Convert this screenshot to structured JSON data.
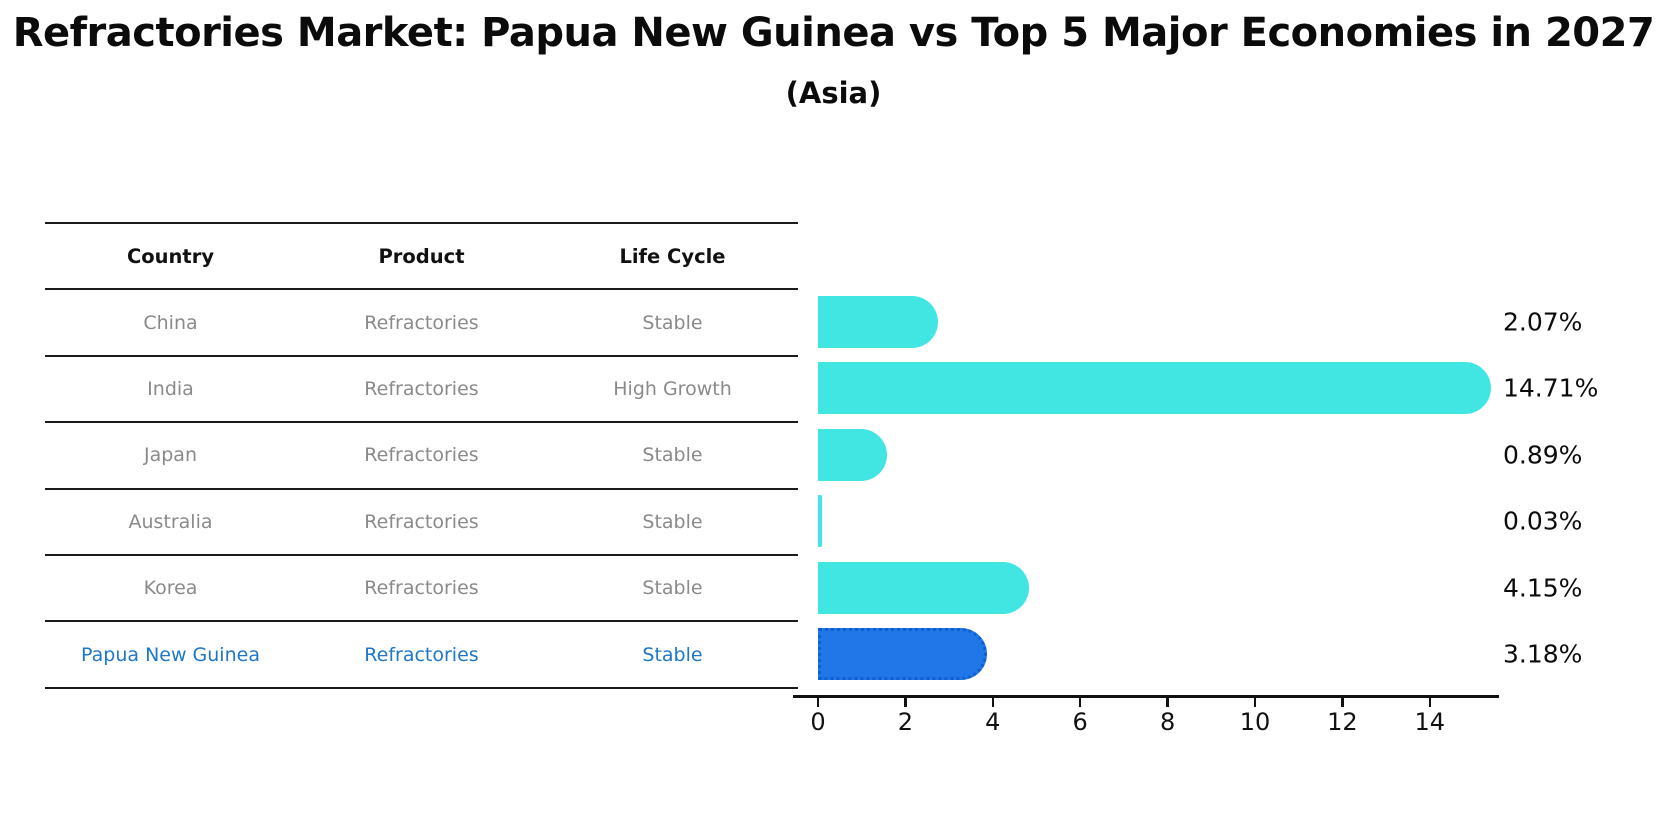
{
  "title": "Refractories Market: Papua New Guinea vs Top 5 Major Economies in 2027",
  "subtitle": "(Asia)",
  "table": {
    "headers": [
      "Country",
      "Product",
      "Life Cycle"
    ],
    "rows": [
      {
        "country": "China",
        "product": "Refractories",
        "life_cycle": "Stable",
        "highlight": false
      },
      {
        "country": "India",
        "product": "Refractories",
        "life_cycle": "High Growth",
        "highlight": false
      },
      {
        "country": "Japan",
        "product": "Refractories",
        "life_cycle": "Stable",
        "highlight": false
      },
      {
        "country": "Australia",
        "product": "Refractories",
        "life_cycle": "Stable",
        "highlight": false
      },
      {
        "country": "Korea",
        "product": "Refractories",
        "life_cycle": "Stable",
        "highlight": false
      },
      {
        "country": "Papua New Guinea",
        "product": "Refractories",
        "life_cycle": "Stable",
        "highlight": true
      }
    ]
  },
  "chart_data": {
    "type": "bar",
    "orientation": "horizontal",
    "categories": [
      "China",
      "India",
      "Japan",
      "Australia",
      "Korea",
      "Papua New Guinea"
    ],
    "values": [
      2.07,
      14.71,
      0.89,
      0.03,
      4.15,
      3.18
    ],
    "value_labels": [
      "2.07%",
      "14.71%",
      "0.89%",
      "0.03%",
      "4.15%",
      "3.18%"
    ],
    "x_ticks": [
      0,
      2,
      4,
      6,
      8,
      10,
      12,
      14
    ],
    "xlim": [
      0,
      15.5
    ],
    "grid": false,
    "legend": null,
    "bar_color": "#41e6e2",
    "highlight_color": "#2176e8",
    "highlight_border_color": "#0f5fd0",
    "highlight_index": 5
  },
  "colors": {
    "text": "#0b0b0b",
    "table_row_text": "#8a8a8a",
    "highlight_row_text": "#1f77c8",
    "axis": "#111111"
  }
}
